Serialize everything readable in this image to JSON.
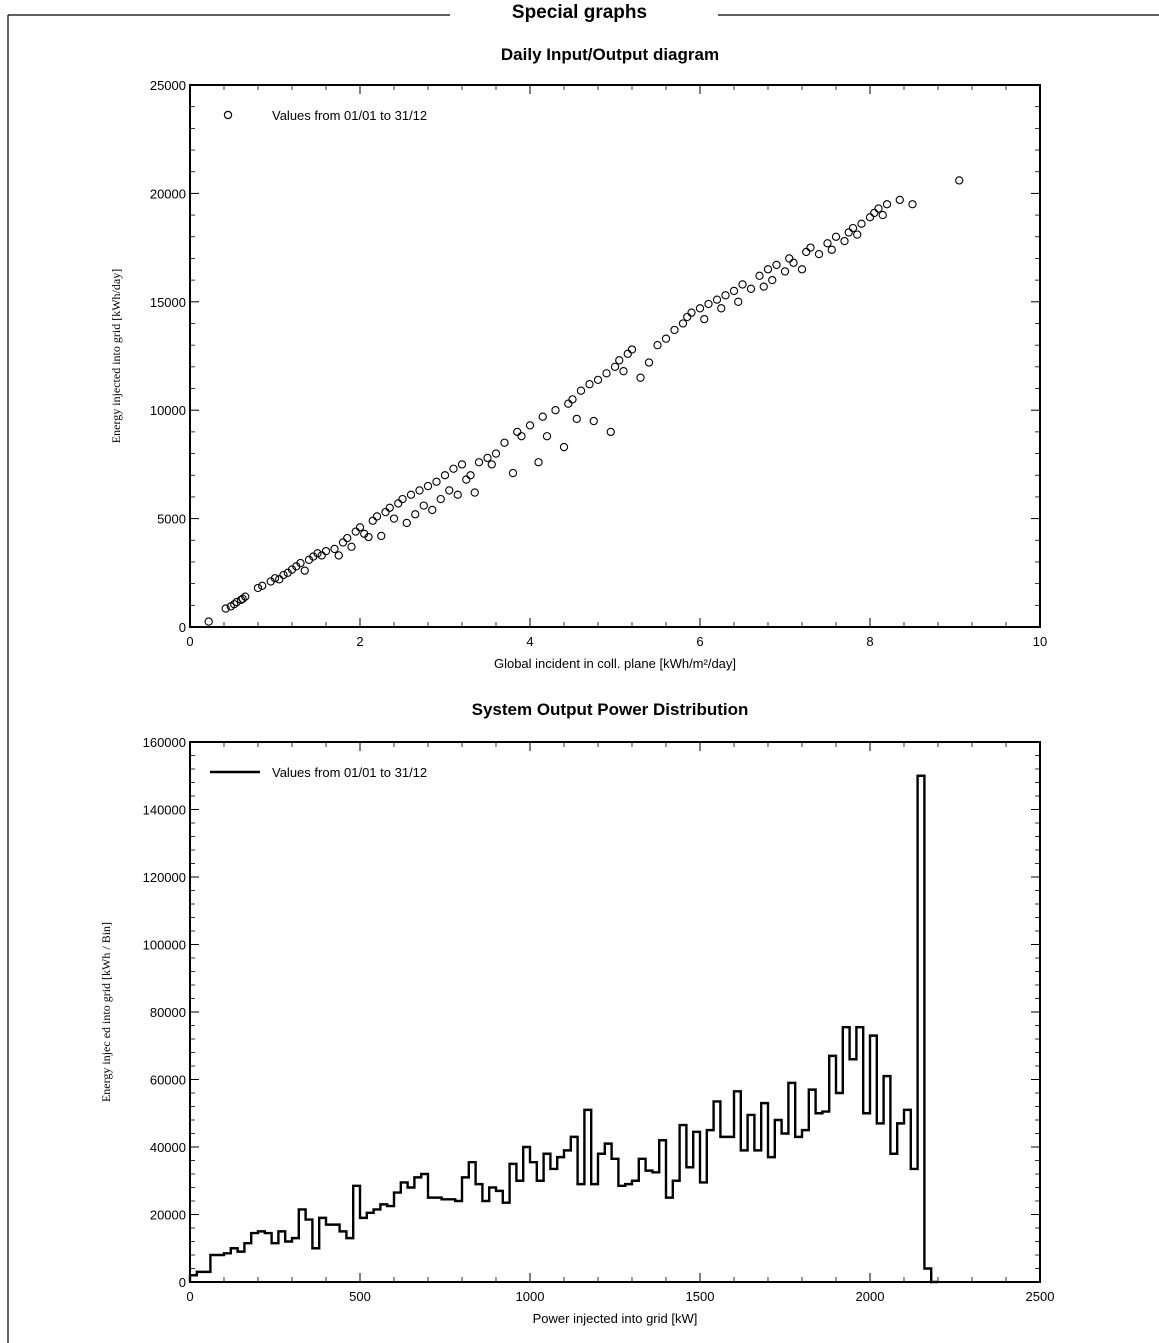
{
  "section": {
    "title": "Special graphs"
  },
  "chart_data": [
    {
      "type": "scatter",
      "title": "Daily Input/Output diagram",
      "xlabel": "Global incident in coll. plane [kWh/m²/day]",
      "ylabel": "Energy injected into grid [kWh/day]",
      "xlim": [
        0,
        10
      ],
      "ylim": [
        0,
        25000
      ],
      "xticks": [
        0,
        2,
        4,
        6,
        8,
        10
      ],
      "yticks": [
        0,
        5000,
        10000,
        15000,
        20000,
        25000
      ],
      "legend": {
        "label": "Values from 01/01 to 31/12",
        "position": "top-left"
      },
      "marker": "open-circle",
      "series": [
        {
          "points": [
            [
              0.22,
              250
            ],
            [
              0.42,
              850
            ],
            [
              0.48,
              950
            ],
            [
              0.52,
              1050
            ],
            [
              0.55,
              1150
            ],
            [
              0.6,
              1250
            ],
            [
              0.62,
              1300
            ],
            [
              0.65,
              1400
            ],
            [
              0.8,
              1800
            ],
            [
              0.85,
              1900
            ],
            [
              0.95,
              2100
            ],
            [
              1.0,
              2250
            ],
            [
              1.05,
              2200
            ],
            [
              1.1,
              2400
            ],
            [
              1.15,
              2500
            ],
            [
              1.2,
              2650
            ],
            [
              1.25,
              2800
            ],
            [
              1.3,
              2950
            ],
            [
              1.35,
              2600
            ],
            [
              1.4,
              3100
            ],
            [
              1.45,
              3250
            ],
            [
              1.5,
              3400
            ],
            [
              1.55,
              3300
            ],
            [
              1.6,
              3500
            ],
            [
              1.7,
              3600
            ],
            [
              1.75,
              3300
            ],
            [
              1.8,
              3900
            ],
            [
              1.85,
              4100
            ],
            [
              1.9,
              3700
            ],
            [
              1.95,
              4400
            ],
            [
              2.0,
              4600
            ],
            [
              2.05,
              4300
            ],
            [
              2.1,
              4150
            ],
            [
              2.15,
              4900
            ],
            [
              2.2,
              5100
            ],
            [
              2.25,
              4200
            ],
            [
              2.3,
              5300
            ],
            [
              2.35,
              5500
            ],
            [
              2.4,
              5000
            ],
            [
              2.45,
              5700
            ],
            [
              2.5,
              5900
            ],
            [
              2.55,
              4800
            ],
            [
              2.6,
              6100
            ],
            [
              2.65,
              5200
            ],
            [
              2.7,
              6300
            ],
            [
              2.75,
              5600
            ],
            [
              2.8,
              6500
            ],
            [
              2.85,
              5400
            ],
            [
              2.9,
              6700
            ],
            [
              2.95,
              5900
            ],
            [
              3.0,
              7000
            ],
            [
              3.05,
              6300
            ],
            [
              3.1,
              7300
            ],
            [
              3.15,
              6100
            ],
            [
              3.2,
              7500
            ],
            [
              3.25,
              6800
            ],
            [
              3.3,
              7000
            ],
            [
              3.35,
              6200
            ],
            [
              3.4,
              7600
            ],
            [
              3.5,
              7800
            ],
            [
              3.55,
              7500
            ],
            [
              3.6,
              8000
            ],
            [
              3.7,
              8500
            ],
            [
              3.8,
              7100
            ],
            [
              3.85,
              9000
            ],
            [
              3.9,
              8800
            ],
            [
              4.0,
              9300
            ],
            [
              4.1,
              7600
            ],
            [
              4.15,
              9700
            ],
            [
              4.2,
              8800
            ],
            [
              4.3,
              10000
            ],
            [
              4.4,
              8300
            ],
            [
              4.45,
              10300
            ],
            [
              4.5,
              10500
            ],
            [
              4.55,
              9600
            ],
            [
              4.6,
              10900
            ],
            [
              4.7,
              11200
            ],
            [
              4.75,
              9500
            ],
            [
              4.8,
              11400
            ],
            [
              4.9,
              11700
            ],
            [
              4.95,
              9000
            ],
            [
              5.0,
              12000
            ],
            [
              5.05,
              12300
            ],
            [
              5.1,
              11800
            ],
            [
              5.15,
              12600
            ],
            [
              5.2,
              12800
            ],
            [
              5.3,
              11500
            ],
            [
              5.4,
              12200
            ],
            [
              5.5,
              13000
            ],
            [
              5.6,
              13300
            ],
            [
              5.7,
              13700
            ],
            [
              5.8,
              14000
            ],
            [
              5.85,
              14300
            ],
            [
              5.9,
              14500
            ],
            [
              6.0,
              14700
            ],
            [
              6.05,
              14200
            ],
            [
              6.1,
              14900
            ],
            [
              6.2,
              15100
            ],
            [
              6.25,
              14700
            ],
            [
              6.3,
              15300
            ],
            [
              6.4,
              15500
            ],
            [
              6.45,
              15000
            ],
            [
              6.5,
              15800
            ],
            [
              6.6,
              15600
            ],
            [
              6.7,
              16200
            ],
            [
              6.75,
              15700
            ],
            [
              6.8,
              16500
            ],
            [
              6.85,
              16000
            ],
            [
              6.9,
              16700
            ],
            [
              7.0,
              16400
            ],
            [
              7.05,
              17000
            ],
            [
              7.1,
              16800
            ],
            [
              7.2,
              16500
            ],
            [
              7.25,
              17300
            ],
            [
              7.3,
              17500
            ],
            [
              7.4,
              17200
            ],
            [
              7.5,
              17700
            ],
            [
              7.55,
              17400
            ],
            [
              7.6,
              18000
            ],
            [
              7.7,
              17800
            ],
            [
              7.75,
              18200
            ],
            [
              7.8,
              18400
            ],
            [
              7.85,
              18100
            ],
            [
              7.9,
              18600
            ],
            [
              8.0,
              18900
            ],
            [
              8.05,
              19100
            ],
            [
              8.1,
              19300
            ],
            [
              8.15,
              19000
            ],
            [
              8.2,
              19500
            ],
            [
              8.35,
              19700
            ],
            [
              8.5,
              19500
            ],
            [
              9.05,
              20600
            ]
          ]
        }
      ]
    },
    {
      "type": "histogram",
      "title": "System Output Power Distribution",
      "xlabel": "Power injected into grid [kW]",
      "ylabel": "Energy injec ed into grid [kWh / Bin]",
      "xlim": [
        0,
        2500
      ],
      "ylim": [
        0,
        160000
      ],
      "xticks": [
        0,
        500,
        1000,
        1500,
        2000,
        2500
      ],
      "yticks": [
        0,
        20000,
        40000,
        60000,
        80000,
        100000,
        120000,
        140000,
        160000
      ],
      "legend": {
        "label": "Values from 01/01 to 31/12",
        "position": "top-left"
      },
      "bin_width": 20,
      "series": [
        {
          "values": [
            2000,
            3000,
            3000,
            8000,
            8000,
            8500,
            10000,
            9000,
            11500,
            14500,
            15000,
            14500,
            11500,
            15000,
            12000,
            13000,
            21500,
            18500,
            10000,
            19000,
            17000,
            17000,
            15000,
            13000,
            28500,
            19000,
            20500,
            21500,
            23000,
            22500,
            26500,
            29500,
            28000,
            31000,
            32000,
            25000,
            25000,
            24500,
            24500,
            24000,
            31000,
            35500,
            29000,
            24000,
            28000,
            27000,
            23500,
            35000,
            30000,
            40000,
            35500,
            30000,
            38000,
            33500,
            37000,
            39000,
            43000,
            29000,
            51000,
            29000,
            38000,
            41000,
            36500,
            28500,
            29000,
            30000,
            36500,
            33000,
            32500,
            42000,
            25000,
            30000,
            46500,
            34000,
            44500,
            29500,
            45000,
            53500,
            43000,
            43000,
            56500,
            39000,
            49500,
            39000,
            53000,
            37000,
            48000,
            44000,
            59000,
            43000,
            45000,
            57000,
            50000,
            50500,
            67000,
            56000,
            75500,
            66000,
            75500,
            50000,
            73000,
            47000,
            61000,
            38000,
            47000,
            51000,
            33500,
            150000,
            4000,
            0
          ]
        }
      ]
    }
  ]
}
